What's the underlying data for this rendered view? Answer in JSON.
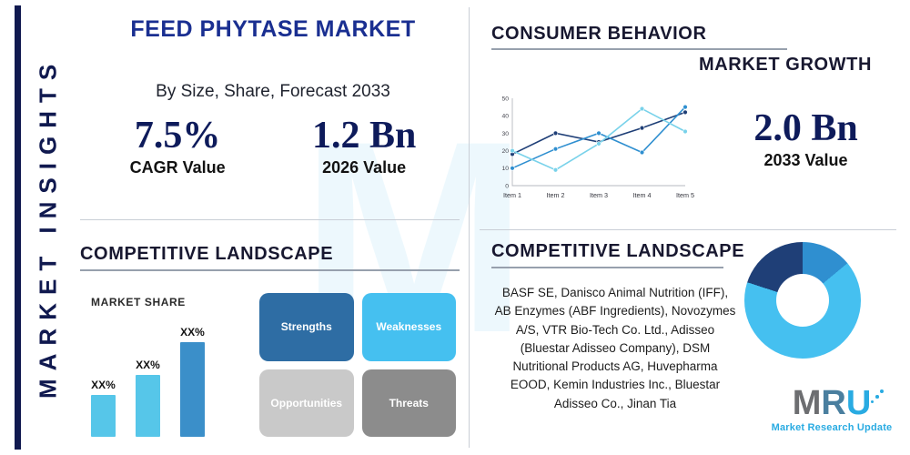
{
  "watermark": "M",
  "sidebar": {
    "label": "MARKET INSIGHTS"
  },
  "header": {
    "title": "FEED PHYTASE MARKET",
    "subtitle": "By Size, Share, Forecast 2033",
    "stats": [
      {
        "value": "7.5%",
        "label": "CAGR Value"
      },
      {
        "value": "1.2 Bn",
        "label": "2026 Value"
      }
    ]
  },
  "consumer_behavior": {
    "title": "CONSUMER BEHAVIOR",
    "subtitle": "MARKET GROWTH",
    "stat_value": "2.0 Bn",
    "stat_label": "2033 Value"
  },
  "competitive_left": {
    "title": "COMPETITIVE LANDSCAPE",
    "swot": [
      {
        "label": "Strengths",
        "color": "#2e6da4"
      },
      {
        "label": "Weaknesses",
        "color": "#45c0f0"
      },
      {
        "label": "Opportunities",
        "color": "#c9c9c9"
      },
      {
        "label": "Threats",
        "color": "#8c8c8c"
      }
    ]
  },
  "competitive_right": {
    "title": "COMPETITIVE LANDSCAPE",
    "companies": "BASF SE, Danisco Animal Nutrition (IFF), AB Enzymes (ABF Ingredients), Novozymes A/S, VTR Bio-Tech Co. Ltd., Adisseo (Bluestar Adisseo Company), DSM Nutritional Products AG, Huvepharma EOOD, Kemin Industries Inc., Bluestar Adisseo Co., Jinan Tia"
  },
  "logo": {
    "letters": [
      {
        "ch": "M",
        "color": "#6d6e71"
      },
      {
        "ch": "R",
        "color": "#4a7f9f"
      },
      {
        "ch": "U",
        "color": "#29abe2"
      }
    ],
    "tagline": "Market Research Update"
  },
  "colors": {
    "navy": "#10194f",
    "royal": "#1a2f91",
    "accent_blue": "#29abe2",
    "divider": "#c9ced6"
  },
  "chart_data": [
    {
      "id": "consumer-line",
      "type": "line",
      "title": "",
      "x": [
        "Item 1",
        "Item 2",
        "Item 3",
        "Item 4",
        "Item 5"
      ],
      "ylim": [
        0,
        50
      ],
      "yticks": [
        0,
        10,
        20,
        30,
        40,
        50
      ],
      "grid": false,
      "legend": "none",
      "series": [
        {
          "name": "series-navy",
          "color": "#1f3f77",
          "values": [
            18,
            30,
            25,
            33,
            42
          ]
        },
        {
          "name": "series-blue",
          "color": "#2f8fd0",
          "values": [
            10,
            21,
            30,
            19,
            45
          ]
        },
        {
          "name": "series-cyan",
          "color": "#79d2ea",
          "values": [
            20,
            9,
            24,
            44,
            31
          ]
        }
      ]
    },
    {
      "id": "market-share-bar",
      "type": "bar",
      "title": "MARKET SHARE",
      "categories": [
        "Bar 1",
        "Bar 2",
        "Bar 3"
      ],
      "values": [
        38,
        56,
        85
      ],
      "labels": [
        "XX%",
        "XX%",
        "XX%"
      ],
      "colors": [
        "#56c6e9",
        "#56c6e9",
        "#3b8fc9"
      ],
      "xlabel": "",
      "ylabel": "",
      "ylim": [
        0,
        100
      ]
    },
    {
      "id": "company-donut",
      "type": "pie",
      "donut": true,
      "slices": [
        {
          "label": "segment-mid-blue",
          "value": 14,
          "color": "#2f8fd0"
        },
        {
          "label": "segment-light-blue",
          "value": 66,
          "color": "#45c0f0"
        },
        {
          "label": "segment-dark-navy",
          "value": 20,
          "color": "#1f3f77"
        }
      ]
    }
  ]
}
